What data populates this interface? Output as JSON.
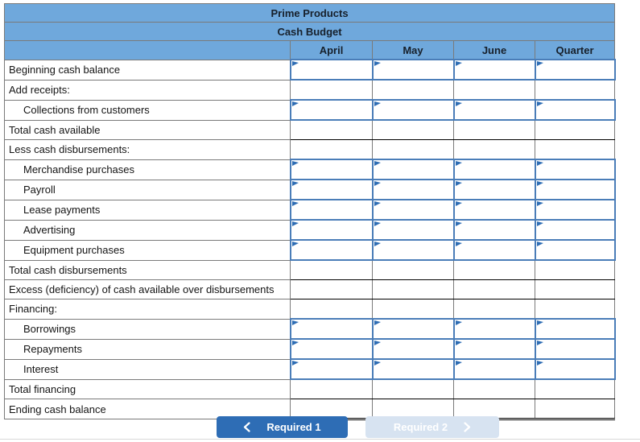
{
  "table": {
    "title": "Prime Products",
    "subtitle": "Cash Budget",
    "columns": [
      "April",
      "May",
      "June",
      "Quarter"
    ],
    "rows": [
      {
        "label": "Beginning cash balance",
        "indent": false,
        "cells": "input"
      },
      {
        "label": "Add receipts:",
        "indent": false,
        "cells": "plain"
      },
      {
        "label": "Collections from customers",
        "indent": true,
        "cells": "input"
      },
      {
        "label": "Total cash available",
        "indent": false,
        "cells": "total"
      },
      {
        "label": "Less cash disbursements:",
        "indent": false,
        "cells": "plain"
      },
      {
        "label": "Merchandise purchases",
        "indent": true,
        "cells": "input"
      },
      {
        "label": "Payroll",
        "indent": true,
        "cells": "input"
      },
      {
        "label": "Lease payments",
        "indent": true,
        "cells": "input"
      },
      {
        "label": "Advertising",
        "indent": true,
        "cells": "input"
      },
      {
        "label": "Equipment purchases",
        "indent": true,
        "cells": "input"
      },
      {
        "label": "Total cash disbursements",
        "indent": false,
        "cells": "total"
      },
      {
        "label": "Excess (deficiency) of cash available over disbursements",
        "indent": false,
        "cells": "total"
      },
      {
        "label": "Financing:",
        "indent": false,
        "cells": "plain"
      },
      {
        "label": "Borrowings",
        "indent": true,
        "cells": "input"
      },
      {
        "label": "Repayments",
        "indent": true,
        "cells": "input"
      },
      {
        "label": "Interest",
        "indent": true,
        "cells": "input"
      },
      {
        "label": "Total financing",
        "indent": false,
        "cells": "total"
      },
      {
        "label": "Ending cash balance",
        "indent": false,
        "cells": "grand_total"
      }
    ],
    "cell_value_empty": ""
  },
  "buttons": {
    "required1": {
      "label": "Required 1",
      "chevron": "left"
    },
    "required2": {
      "label": "Required 2",
      "chevron": "right"
    }
  },
  "colors": {
    "header_blue": "#6FA8DC",
    "input_border_blue": "#4a7db8",
    "input_flag_blue": "#2e6db4",
    "grid_gray": "#7a7a7a",
    "total_rule_black": "#000000",
    "button_primary_blue": "#2e6db5",
    "button_disabled_blue": "#d7e3f1"
  }
}
